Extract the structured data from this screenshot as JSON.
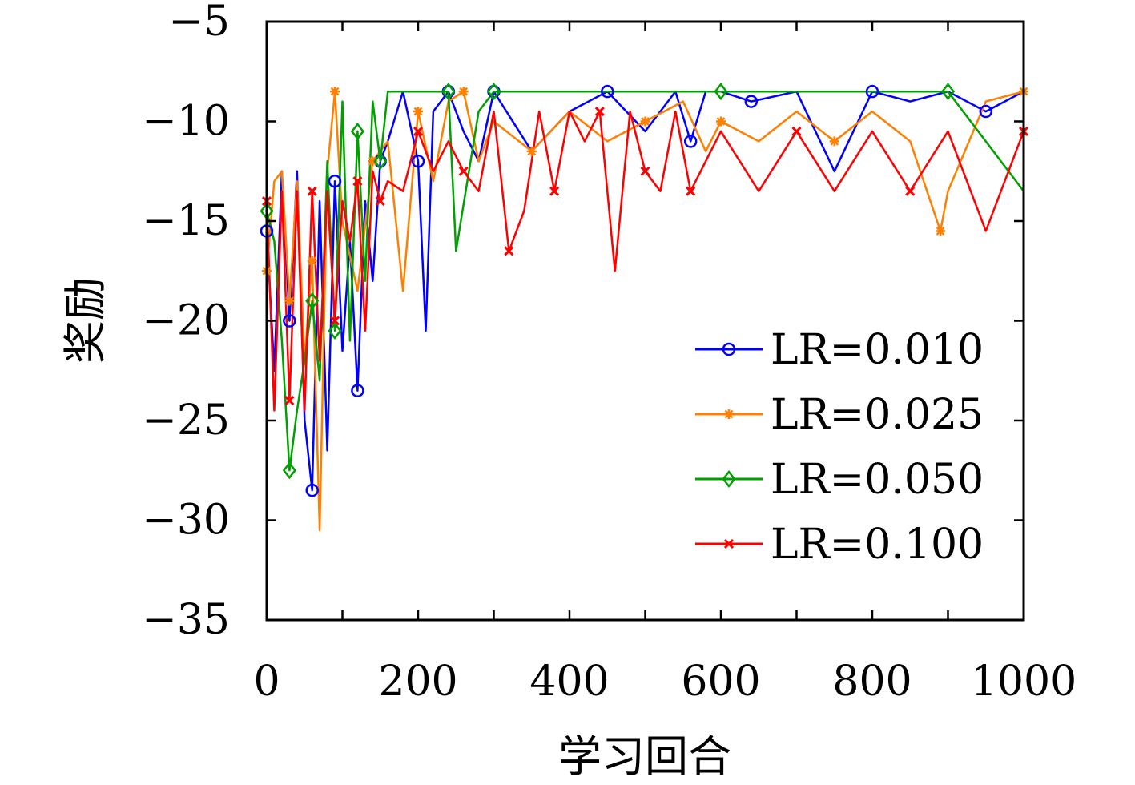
{
  "chart_data": {
    "type": "line",
    "xlabel": "学习回合",
    "ylabel": "奖励",
    "xlim": [
      0,
      1000
    ],
    "ylim": [
      -35,
      -5
    ],
    "xticks": [
      0,
      200,
      400,
      600,
      800,
      1000
    ],
    "yticks": [
      -5,
      -10,
      -15,
      -20,
      -25,
      -30,
      -35
    ],
    "xtick_labels": [
      "0",
      "200",
      "400",
      "600",
      "800",
      "1000"
    ],
    "ytick_labels": [
      "−5",
      "−10",
      "−15",
      "−20",
      "−25",
      "−30",
      "−35"
    ],
    "legend_position": "lower-right",
    "grid": false,
    "series": [
      {
        "name": "LR=0.010",
        "color": "#0000ff",
        "marker": "circle",
        "x": [
          0,
          10,
          20,
          30,
          40,
          50,
          60,
          70,
          80,
          90,
          100,
          110,
          120,
          130,
          140,
          150,
          160,
          180,
          200,
          210,
          220,
          240,
          260,
          280,
          300,
          350,
          400,
          450,
          500,
          540,
          560,
          580,
          600,
          640,
          700,
          750,
          800,
          850,
          900,
          950,
          1000
        ],
        "y": [
          -15.5,
          -22.5,
          -12.5,
          -20,
          -12.5,
          -25,
          -28.5,
          -14,
          -26.5,
          -13,
          -21.5,
          -16,
          -23.5,
          -14,
          -18,
          -12,
          -11,
          -8.5,
          -12,
          -20.5,
          -9.5,
          -8.5,
          -10.5,
          -12,
          -8.5,
          -11.5,
          -9.5,
          -8.5,
          -10.5,
          -8.5,
          -11,
          -8.5,
          -8.5,
          -9,
          -8.5,
          -12.5,
          -8.5,
          -9,
          -8.5,
          -9.5,
          -8.5
        ]
      },
      {
        "name": "LR=0.025",
        "color": "#ff8000",
        "marker": "asterisk",
        "x": [
          0,
          10,
          20,
          30,
          40,
          50,
          60,
          70,
          80,
          90,
          100,
          120,
          140,
          160,
          180,
          200,
          220,
          240,
          260,
          280,
          300,
          350,
          400,
          450,
          500,
          550,
          580,
          600,
          650,
          700,
          750,
          800,
          850,
          890,
          900,
          950,
          1000
        ],
        "y": [
          -17.5,
          -13,
          -12.5,
          -19,
          -13,
          -22,
          -17,
          -30.5,
          -12.5,
          -8.5,
          -15,
          -18.5,
          -12,
          -11,
          -18.5,
          -9.5,
          -13,
          -9,
          -8.5,
          -12,
          -10,
          -11.5,
          -9.5,
          -11,
          -10,
          -9,
          -11.5,
          -10,
          -11,
          -9.5,
          -11,
          -9.5,
          -11,
          -15.5,
          -13.5,
          -9,
          -8.5
        ]
      },
      {
        "name": "LR=0.050",
        "color": "#00a000",
        "marker": "diamond",
        "x": [
          0,
          10,
          20,
          30,
          40,
          50,
          60,
          70,
          80,
          90,
          100,
          110,
          120,
          130,
          140,
          150,
          160,
          200,
          240,
          250,
          280,
          300,
          400,
          500,
          600,
          700,
          800,
          900,
          1000
        ],
        "y": [
          -14.5,
          -16,
          -21,
          -27.5,
          -24.5,
          -22,
          -19,
          -23,
          -12,
          -20.5,
          -9,
          -21,
          -10.5,
          -18,
          -9,
          -12,
          -8.5,
          -8.5,
          -8.5,
          -16.5,
          -9.5,
          -8.5,
          -8.5,
          -8.5,
          -8.5,
          -8.5,
          -8.5,
          -8.5,
          -13.5
        ]
      },
      {
        "name": "LR=0.100",
        "color": "#ff0000",
        "marker": "cross",
        "x": [
          0,
          10,
          20,
          30,
          40,
          50,
          60,
          70,
          80,
          90,
          100,
          110,
          120,
          130,
          140,
          150,
          160,
          180,
          200,
          220,
          240,
          260,
          280,
          300,
          320,
          340,
          360,
          380,
          400,
          420,
          440,
          460,
          480,
          500,
          520,
          540,
          560,
          600,
          650,
          700,
          750,
          800,
          850,
          900,
          950,
          1000
        ],
        "y": [
          -14,
          -24.5,
          -13.5,
          -24,
          -13.5,
          -24.5,
          -13.5,
          -22,
          -13.5,
          -20,
          -14,
          -16,
          -13,
          -20.5,
          -12.5,
          -14,
          -13,
          -13.5,
          -10.5,
          -12.5,
          -11,
          -12.5,
          -13.5,
          -9.5,
          -16.5,
          -14.5,
          -9.5,
          -13.5,
          -9.5,
          -11,
          -9.5,
          -17.5,
          -9.5,
          -12.5,
          -13.5,
          -9.5,
          -13.5,
          -10.5,
          -13.5,
          -10.5,
          -13.5,
          -10.5,
          -13.5,
          -10.5,
          -15.5,
          -10.5
        ]
      }
    ]
  }
}
